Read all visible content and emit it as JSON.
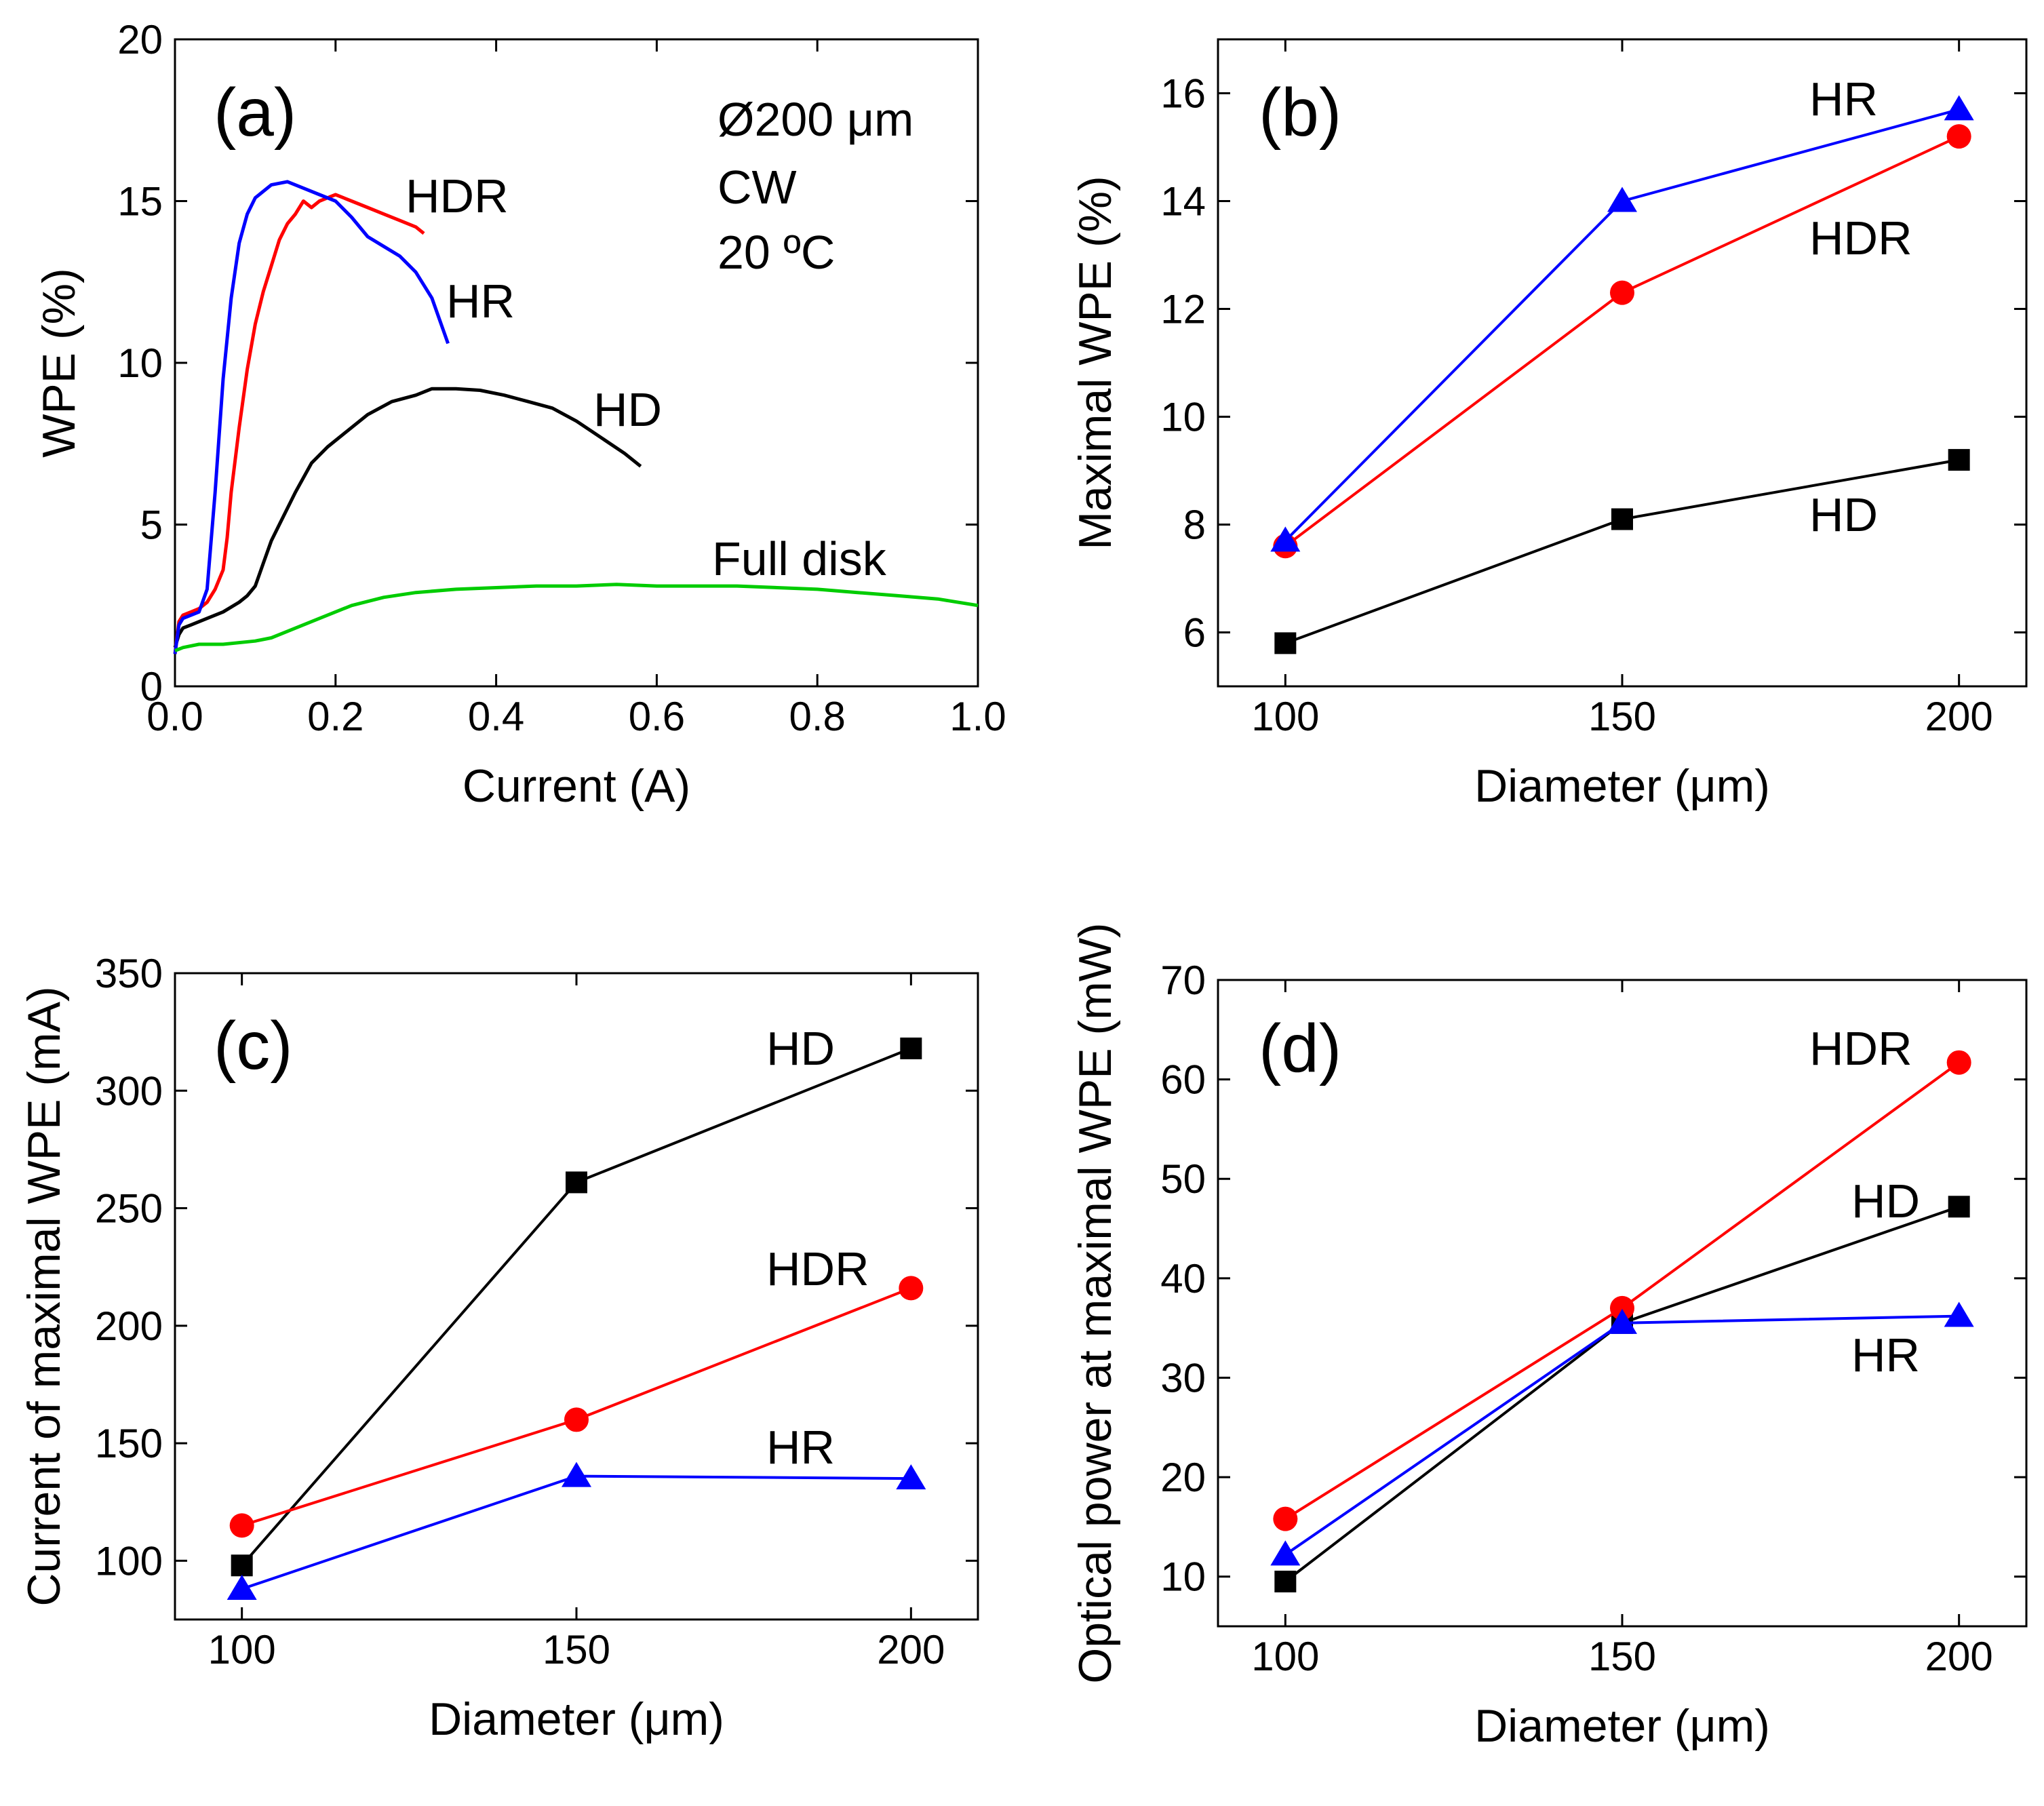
{
  "figure": {
    "colors": {
      "HD": "#000000",
      "HDR": "#ff0000",
      "HR": "#0000ff",
      "Full disk": "#00cc00"
    }
  },
  "chart_data": [
    {
      "panel": "(a)",
      "type": "line",
      "xlabel": "Current (A)",
      "ylabel": "WPE (%)",
      "xlim": [
        0.0,
        1.0
      ],
      "ylim": [
        0,
        20
      ],
      "xticks": [
        "0.0",
        "0.2",
        "0.4",
        "0.6",
        "0.8",
        "1.0"
      ],
      "yticks": [
        "0",
        "5",
        "10",
        "15",
        "20"
      ],
      "annotations": [
        "Ø200 μm",
        "CW",
        "20 ºC"
      ],
      "series": [
        {
          "name": "HD",
          "color": "#000000",
          "x": [
            0.0,
            0.005,
            0.01,
            0.02,
            0.04,
            0.06,
            0.08,
            0.09,
            0.1,
            0.11,
            0.12,
            0.13,
            0.15,
            0.17,
            0.19,
            0.21,
            0.24,
            0.27,
            0.3,
            0.32,
            0.35,
            0.38,
            0.41,
            0.44,
            0.47,
            0.5,
            0.53,
            0.56,
            0.58
          ],
          "y": [
            1.2,
            1.6,
            1.8,
            1.9,
            2.1,
            2.3,
            2.6,
            2.8,
            3.1,
            3.8,
            4.5,
            5.0,
            6.0,
            6.9,
            7.4,
            7.8,
            8.4,
            8.8,
            9.0,
            9.2,
            9.2,
            9.15,
            9.0,
            8.8,
            8.6,
            8.2,
            7.7,
            7.2,
            6.8
          ]
        },
        {
          "name": "HDR",
          "color": "#ff0000",
          "x": [
            0.0,
            0.005,
            0.01,
            0.02,
            0.03,
            0.04,
            0.05,
            0.06,
            0.065,
            0.07,
            0.08,
            0.09,
            0.1,
            0.11,
            0.12,
            0.13,
            0.14,
            0.15,
            0.16,
            0.17,
            0.18,
            0.19,
            0.2,
            0.21,
            0.22,
            0.24,
            0.26,
            0.28,
            0.3,
            0.31
          ],
          "y": [
            1.0,
            2.0,
            2.2,
            2.3,
            2.4,
            2.6,
            3.0,
            3.6,
            4.6,
            6.0,
            8.0,
            9.8,
            11.2,
            12.2,
            13.0,
            13.8,
            14.3,
            14.6,
            15.0,
            14.8,
            15.0,
            15.1,
            15.2,
            15.1,
            15.0,
            14.8,
            14.6,
            14.4,
            14.2,
            14.0
          ]
        },
        {
          "name": "HR",
          "color": "#0000ff",
          "x": [
            0.0,
            0.005,
            0.01,
            0.02,
            0.03,
            0.04,
            0.05,
            0.06,
            0.07,
            0.08,
            0.09,
            0.1,
            0.12,
            0.14,
            0.16,
            0.18,
            0.2,
            0.22,
            0.24,
            0.26,
            0.28,
            0.3,
            0.32,
            0.34
          ],
          "y": [
            1.0,
            1.9,
            2.1,
            2.2,
            2.3,
            3.0,
            6.0,
            9.5,
            12.0,
            13.7,
            14.6,
            15.1,
            15.5,
            15.6,
            15.4,
            15.2,
            15.0,
            14.5,
            13.9,
            13.6,
            13.3,
            12.8,
            12.0,
            10.6
          ]
        },
        {
          "name": "Full disk",
          "color": "#00cc00",
          "x": [
            0.0,
            0.01,
            0.03,
            0.06,
            0.1,
            0.12,
            0.14,
            0.18,
            0.22,
            0.26,
            0.3,
            0.35,
            0.4,
            0.45,
            0.5,
            0.55,
            0.6,
            0.65,
            0.7,
            0.75,
            0.8,
            0.85,
            0.9,
            0.95,
            1.0
          ],
          "y": [
            1.1,
            1.2,
            1.3,
            1.3,
            1.4,
            1.5,
            1.7,
            2.1,
            2.5,
            2.75,
            2.9,
            3.0,
            3.05,
            3.1,
            3.1,
            3.15,
            3.1,
            3.1,
            3.1,
            3.05,
            3.0,
            2.9,
            2.8,
            2.7,
            2.5
          ]
        }
      ]
    },
    {
      "panel": "(b)",
      "type": "line",
      "xlabel": "Diameter (μm)",
      "ylabel": "Maximal WPE (%)",
      "x": [
        100,
        150,
        200
      ],
      "xlim": [
        90,
        210
      ],
      "ylim": [
        5,
        17
      ],
      "xticks": [
        "100",
        "150",
        "200"
      ],
      "yticks": [
        "6",
        "8",
        "10",
        "12",
        "14",
        "16"
      ],
      "series": [
        {
          "name": "HD",
          "color": "#000000",
          "marker": "square",
          "values": [
            5.8,
            8.1,
            9.2
          ]
        },
        {
          "name": "HDR",
          "color": "#ff0000",
          "marker": "circle",
          "values": [
            7.6,
            12.3,
            15.2
          ]
        },
        {
          "name": "HR",
          "color": "#0000ff",
          "marker": "triangle",
          "values": [
            7.7,
            14.0,
            15.7
          ]
        }
      ]
    },
    {
      "panel": "(c)",
      "type": "line",
      "xlabel": "Diameter (μm)",
      "ylabel": "Current of maximal WPE (mA)",
      "x": [
        100,
        150,
        200
      ],
      "xlim": [
        90,
        210
      ],
      "ylim": [
        75,
        350
      ],
      "xticks": [
        "100",
        "150",
        "200"
      ],
      "yticks": [
        "100",
        "150",
        "200",
        "250",
        "300",
        "350"
      ],
      "series": [
        {
          "name": "HD",
          "color": "#000000",
          "marker": "square",
          "values": [
            98,
            261,
            318
          ]
        },
        {
          "name": "HDR",
          "color": "#ff0000",
          "marker": "circle",
          "values": [
            115,
            160,
            216
          ]
        },
        {
          "name": "HR",
          "color": "#0000ff",
          "marker": "triangle",
          "values": [
            88,
            136,
            135
          ]
        }
      ]
    },
    {
      "panel": "(d)",
      "type": "line",
      "xlabel": "Diameter (μm)",
      "ylabel": "Optical power at maximal WPE (mW)",
      "x": [
        100,
        150,
        200
      ],
      "xlim": [
        90,
        210
      ],
      "ylim": [
        5,
        70
      ],
      "xticks": [
        "100",
        "150",
        "200"
      ],
      "yticks": [
        "10",
        "20",
        "30",
        "40",
        "50",
        "60",
        "70"
      ],
      "series": [
        {
          "name": "HD",
          "color": "#000000",
          "marker": "square",
          "values": [
            9.5,
            35.5,
            47.2
          ]
        },
        {
          "name": "HDR",
          "color": "#ff0000",
          "marker": "circle",
          "values": [
            15.8,
            37.0,
            61.7
          ]
        },
        {
          "name": "HR",
          "color": "#0000ff",
          "marker": "triangle",
          "values": [
            12.2,
            35.5,
            36.2
          ]
        }
      ]
    }
  ]
}
